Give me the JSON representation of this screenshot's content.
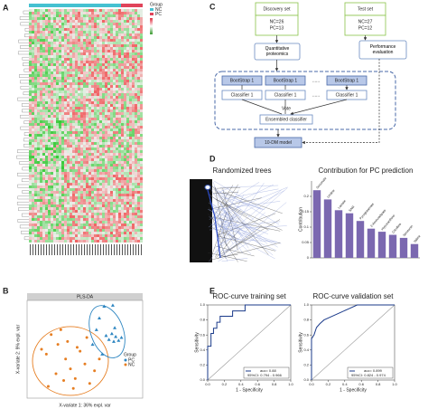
{
  "panel_labels": [
    "A",
    "B",
    "C",
    "D",
    "E"
  ],
  "heatmap": {
    "legend_title": "Group",
    "legend_items": [
      "NC",
      "PC"
    ]
  },
  "flowchart": {
    "discovery": {
      "title": "Discovery set",
      "lines": [
        "NC=26",
        "PC=13"
      ]
    },
    "test": {
      "title": "Test set",
      "lines": [
        "NC=27",
        "PC=12"
      ]
    },
    "proteomics": "Quantitative proteomics",
    "evaluation": "Performance evaluation",
    "bootstraps": [
      "BootStrap 1",
      "BootStrap 1",
      "BootStrap 1"
    ],
    "classifiers": [
      "Classifier 1",
      "Classifier 1",
      "Classifier 1"
    ],
    "ellipsis": "......",
    "vote": "Vote",
    "ensemble": "Ensembled classifier",
    "model": "10-DM model"
  },
  "trees_title": "Randomized trees",
  "chart_data": [
    {
      "type": "scatter",
      "title": "PLS-DA",
      "xlabel": "X-variate 1: 36% expl. var",
      "ylabel": "X-variate 2: 9% expl. var",
      "legend_title": "Group",
      "xlim": [
        -6,
        6
      ],
      "ylim": [
        -5,
        5
      ],
      "series": [
        {
          "name": "PC",
          "color": "#2e86c1",
          "x": [
            2.5,
            3,
            3.2,
            2.8,
            3.5,
            2.2,
            3.8,
            3.1,
            2.9,
            2.0,
            1.5,
            1.2,
            0.8,
            1.8
          ],
          "y": [
            1.0,
            0.8,
            1.3,
            1.6,
            0.9,
            1.4,
            1.2,
            2.2,
            4.5,
            4.4,
            3.2,
            2.0,
            0.5,
            -0.5
          ]
        },
        {
          "name": "NC",
          "color": "#e67e22",
          "x": [
            -3.5,
            -2.8,
            -2,
            -1.5,
            -4,
            -3,
            -1,
            0,
            0.5,
            -2.5,
            -1.8,
            -0.5,
            1,
            -3.8,
            -2.2,
            0.2,
            1.5,
            -1.2,
            -4.5,
            -0.8
          ],
          "y": [
            1.5,
            0.5,
            -1,
            -2,
            -0.5,
            -2.5,
            -3,
            -1.5,
            -3.5,
            2,
            0.8,
            -0.2,
            -2.2,
            -3.8,
            -3.2,
            1.2,
            -1,
            -4,
            0,
            0.2
          ]
        }
      ]
    },
    {
      "type": "bar",
      "title": "Contribution for PC prediction",
      "ylabel": "Contribution",
      "categories": [
        "Succinate",
        "Uridine",
        "Lactate",
        "SAM",
        "Pyroglutamate",
        "2-Aminoadipate",
        "Hypoxanthine",
        "Citrulline",
        "Serotonin",
        "Valine"
      ],
      "values": [
        0.22,
        0.19,
        0.155,
        0.145,
        0.12,
        0.095,
        0.085,
        0.075,
        0.065,
        0.045
      ],
      "color": "#7b68b0",
      "ylim": [
        0,
        0.25
      ],
      "yticks": [
        0,
        0.05,
        0.1,
        0.15,
        0.2
      ]
    },
    {
      "type": "line",
      "title": "ROC-curve training set",
      "xlabel": "1 - Specificity",
      "ylabel": "Sensitivity",
      "x": [
        0,
        0,
        0.04,
        0.04,
        0.07,
        0.07,
        0.11,
        0.11,
        0.15,
        0.15,
        0.3,
        0.3,
        0.45,
        0.45,
        1
      ],
      "values": [
        0,
        0.45,
        0.45,
        0.62,
        0.62,
        0.69,
        0.69,
        0.77,
        0.77,
        0.85,
        0.85,
        0.92,
        0.92,
        1,
        1
      ],
      "color": "#1a3a8a",
      "annotations": [
        "auc= 0.88",
        "95%CI: 0.794 - 0.966"
      ],
      "xlim": [
        0,
        1
      ],
      "ylim": [
        0,
        1
      ],
      "xticks": [
        {
          "value": 0,
          "label": "0.0"
        },
        {
          "value": 0.2,
          "label": "0.2"
        },
        {
          "value": 0.4,
          "label": "0.4"
        },
        {
          "value": 0.6,
          "label": "0.6"
        },
        {
          "value": 0.8,
          "label": "0.8"
        },
        {
          "value": 1,
          "label": "1.0"
        }
      ],
      "yticks": [
        {
          "value": 0,
          "label": "0.0"
        },
        {
          "value": 0.2,
          "label": "0.2"
        },
        {
          "value": 0.4,
          "label": "0.4"
        },
        {
          "value": 0.6,
          "label": "0.6"
        },
        {
          "value": 0.8,
          "label": "0.8"
        },
        {
          "value": 1,
          "label": "1.0"
        }
      ]
    },
    {
      "type": "line",
      "title": "ROC-curve validation set",
      "xlabel": "1 - Specificity",
      "ylabel": "Sensitivity",
      "x": [
        0,
        0,
        0.03,
        0.06,
        0.1,
        0.15,
        0.25,
        0.35,
        0.45,
        0.55,
        1
      ],
      "values": [
        0,
        0.55,
        0.6,
        0.7,
        0.75,
        0.8,
        0.85,
        0.9,
        0.95,
        1,
        1
      ],
      "color": "#1a3a8a",
      "annotations": [
        "auc= 0.899",
        "95%CI: 0.824 - 0.974"
      ],
      "xlim": [
        0,
        1
      ],
      "ylim": [
        0,
        1
      ],
      "xticks": [
        {
          "value": 0,
          "label": "0.0"
        },
        {
          "value": 0.2,
          "label": "0.2"
        },
        {
          "value": 0.4,
          "label": "0.4"
        },
        {
          "value": 0.6,
          "label": "0.6"
        },
        {
          "value": 0.8,
          "label": "0.8"
        },
        {
          "value": 1,
          "label": "1.0"
        }
      ],
      "yticks": [
        {
          "value": 0,
          "label": "0.0"
        },
        {
          "value": 0.2,
          "label": "0.2"
        },
        {
          "value": 0.4,
          "label": "0.4"
        },
        {
          "value": 0.6,
          "label": "0.6"
        },
        {
          "value": 0.8,
          "label": "0.8"
        },
        {
          "value": 1,
          "label": "1.0"
        }
      ]
    }
  ]
}
